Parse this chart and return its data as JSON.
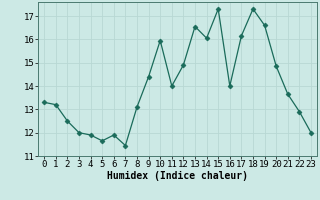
{
  "x": [
    0,
    1,
    2,
    3,
    4,
    5,
    6,
    7,
    8,
    9,
    10,
    11,
    12,
    13,
    14,
    15,
    16,
    17,
    18,
    19,
    20,
    21,
    22,
    23
  ],
  "y": [
    13.3,
    13.2,
    12.5,
    12.0,
    11.9,
    11.65,
    11.9,
    11.45,
    13.1,
    14.4,
    15.95,
    14.0,
    14.9,
    16.55,
    16.05,
    17.3,
    14.0,
    16.15,
    17.3,
    16.6,
    14.85,
    13.65,
    12.9,
    12.0
  ],
  "line_color": "#1a6b5a",
  "marker": "D",
  "marker_size": 2.5,
  "bg_color": "#cce9e5",
  "grid_color": "#b8d8d4",
  "xlabel": "Humidex (Indice chaleur)",
  "ylim": [
    11,
    17.6
  ],
  "xlim": [
    -0.5,
    23.5
  ],
  "yticks": [
    11,
    12,
    13,
    14,
    15,
    16,
    17
  ],
  "xticks": [
    0,
    1,
    2,
    3,
    4,
    5,
    6,
    7,
    8,
    9,
    10,
    11,
    12,
    13,
    14,
    15,
    16,
    17,
    18,
    19,
    20,
    21,
    22,
    23
  ],
  "xlabel_fontsize": 7,
  "tick_fontsize": 6.5
}
